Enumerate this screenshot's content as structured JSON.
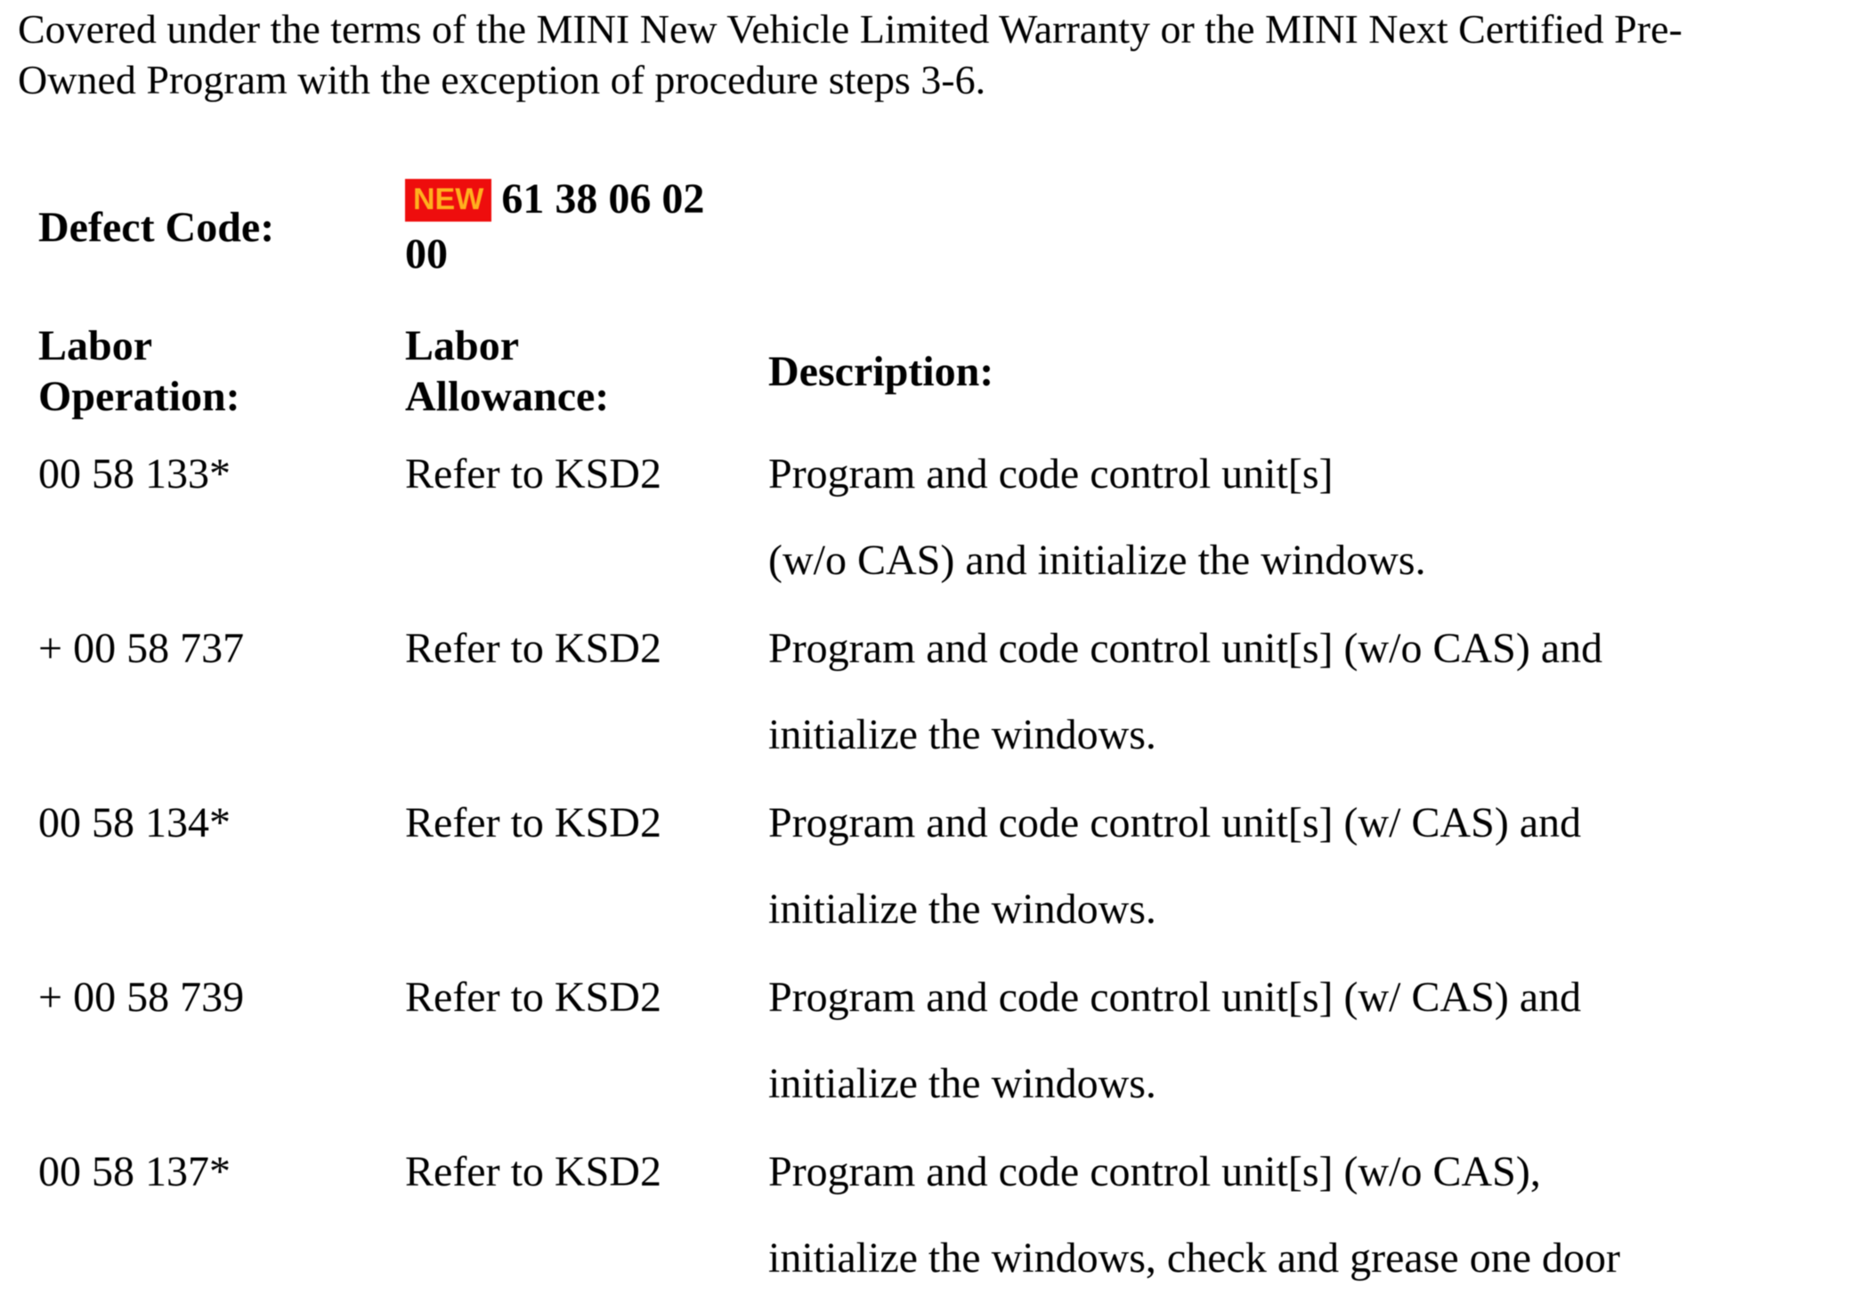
{
  "intro": {
    "lines": [
      "Covered under the terms of the MINI New Vehicle Limited Warranty or the MINI Next Certified Pre-",
      "Owned Program with the exception of procedure steps 3-6."
    ]
  },
  "defect": {
    "label": "Defect Code:",
    "badge": "NEW",
    "code_lines": [
      "61 38 06 02",
      "00"
    ]
  },
  "table": {
    "headers": {
      "operation_lines": [
        "Labor",
        "Operation:"
      ],
      "allowance_lines": [
        "Labor",
        "Allowance:"
      ],
      "description": "Description:"
    },
    "rows": [
      {
        "op": "00 58 133*",
        "allowance": "Refer to KSD2",
        "desc": [
          "Program and code control unit[s]",
          "(w/o CAS) and initialize the windows."
        ]
      },
      {
        "op": "+ 00 58 737",
        "allowance": "Refer to KSD2",
        "desc": [
          "Program and code control unit[s] (w/o CAS) and",
          "initialize the windows."
        ]
      },
      {
        "op": "00 58 134*",
        "allowance": "Refer to KSD2",
        "desc": [
          "Program and code control unit[s] (w/ CAS) and",
          "initialize the windows."
        ]
      },
      {
        "op": "+ 00 58 739",
        "allowance": "Refer to KSD2",
        "desc": [
          "Program and code control unit[s] (w/ CAS) and",
          "initialize the windows."
        ]
      },
      {
        "op": "00 58 137*",
        "allowance": "Refer to KSD2",
        "desc": [
          "Program and code control unit[s] (w/o CAS),",
          "initialize the windows, check and grease one door"
        ]
      }
    ]
  },
  "colors": {
    "badge_bg": "#ee0d0d",
    "badge_text": "#ffb01e",
    "text": "#000000",
    "background": "#ffffff"
  }
}
